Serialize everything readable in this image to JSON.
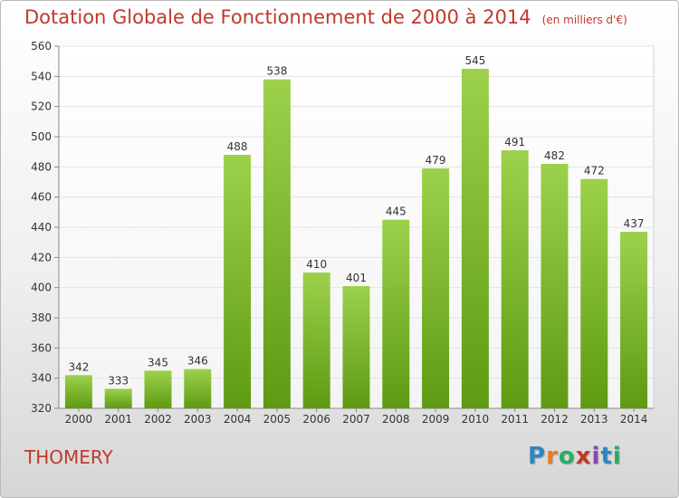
{
  "title": "Dotation Globale de Fonctionnement de 2000 à 2014",
  "unit_note": "(en milliers d'€)",
  "place": "THOMERY",
  "logo": {
    "text": "Proxiti",
    "letters": [
      {
        "ch": "P",
        "color": "#2e86c1"
      },
      {
        "ch": "r",
        "color": "#e67e22"
      },
      {
        "ch": "o",
        "color": "#27ae60"
      },
      {
        "ch": "x",
        "color": "#c0392b"
      },
      {
        "ch": "i",
        "color": "#8e44ad"
      },
      {
        "ch": "t",
        "color": "#2e86c1"
      },
      {
        "ch": "i",
        "color": "#27ae60"
      }
    ]
  },
  "colors": {
    "title": "#c0392b",
    "bar_top": "#9dd14c",
    "bar_bottom": "#5e9a12",
    "grid": "#e3e3e3",
    "axis_text": "#333333"
  },
  "chart_data": {
    "type": "bar",
    "categories": [
      "2000",
      "2001",
      "2002",
      "2003",
      "2004",
      "2005",
      "2006",
      "2007",
      "2008",
      "2009",
      "2010",
      "2011",
      "2012",
      "2013",
      "2014"
    ],
    "values": [
      342,
      333,
      345,
      346,
      488,
      538,
      410,
      401,
      445,
      479,
      545,
      491,
      482,
      472,
      437
    ],
    "ylim": [
      320,
      560
    ],
    "yticks": [
      320,
      340,
      360,
      380,
      400,
      420,
      440,
      460,
      480,
      500,
      520,
      540,
      560
    ],
    "grid": true,
    "data_labels": true
  }
}
